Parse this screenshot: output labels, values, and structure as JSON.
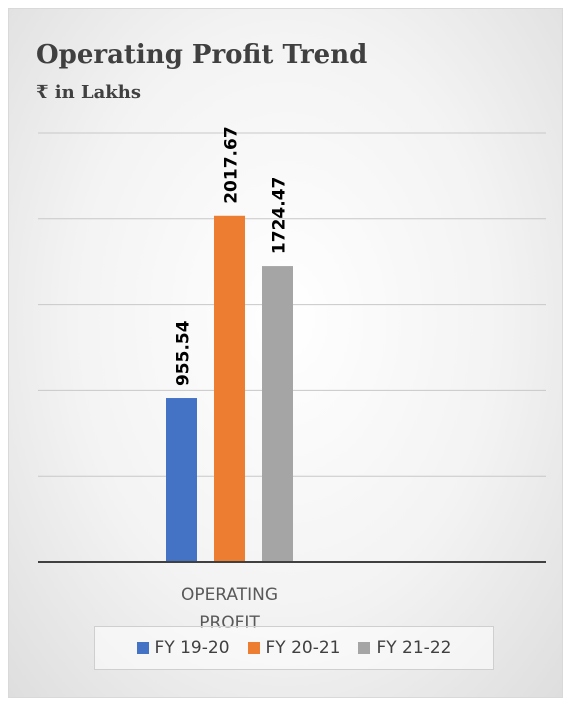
{
  "chart_data": {
    "type": "bar",
    "title": "Operating Profit Trend",
    "subtitle": "₹ in Lakhs",
    "categories": [
      "OPERATING PROFIT"
    ],
    "category_label_lines": [
      "OPERATING",
      "PROFIT"
    ],
    "series": [
      {
        "name": "FY 19-20",
        "values": [
          955.54
        ],
        "label": "955.54",
        "color": "#4472C4"
      },
      {
        "name": "FY 20-21",
        "values": [
          2017.67
        ],
        "label": "2017.67",
        "color": "#ED7D31"
      },
      {
        "name": "FY 21-22",
        "values": [
          1724.47
        ],
        "label": "1724.47",
        "color": "#A5A5A5"
      }
    ],
    "ylim": [
      0,
      2500
    ],
    "y_gridlines": [
      500,
      1000,
      1500,
      2000,
      2500
    ],
    "grid": true,
    "legend_position": "bottom",
    "xlabel": "",
    "ylabel": ""
  }
}
